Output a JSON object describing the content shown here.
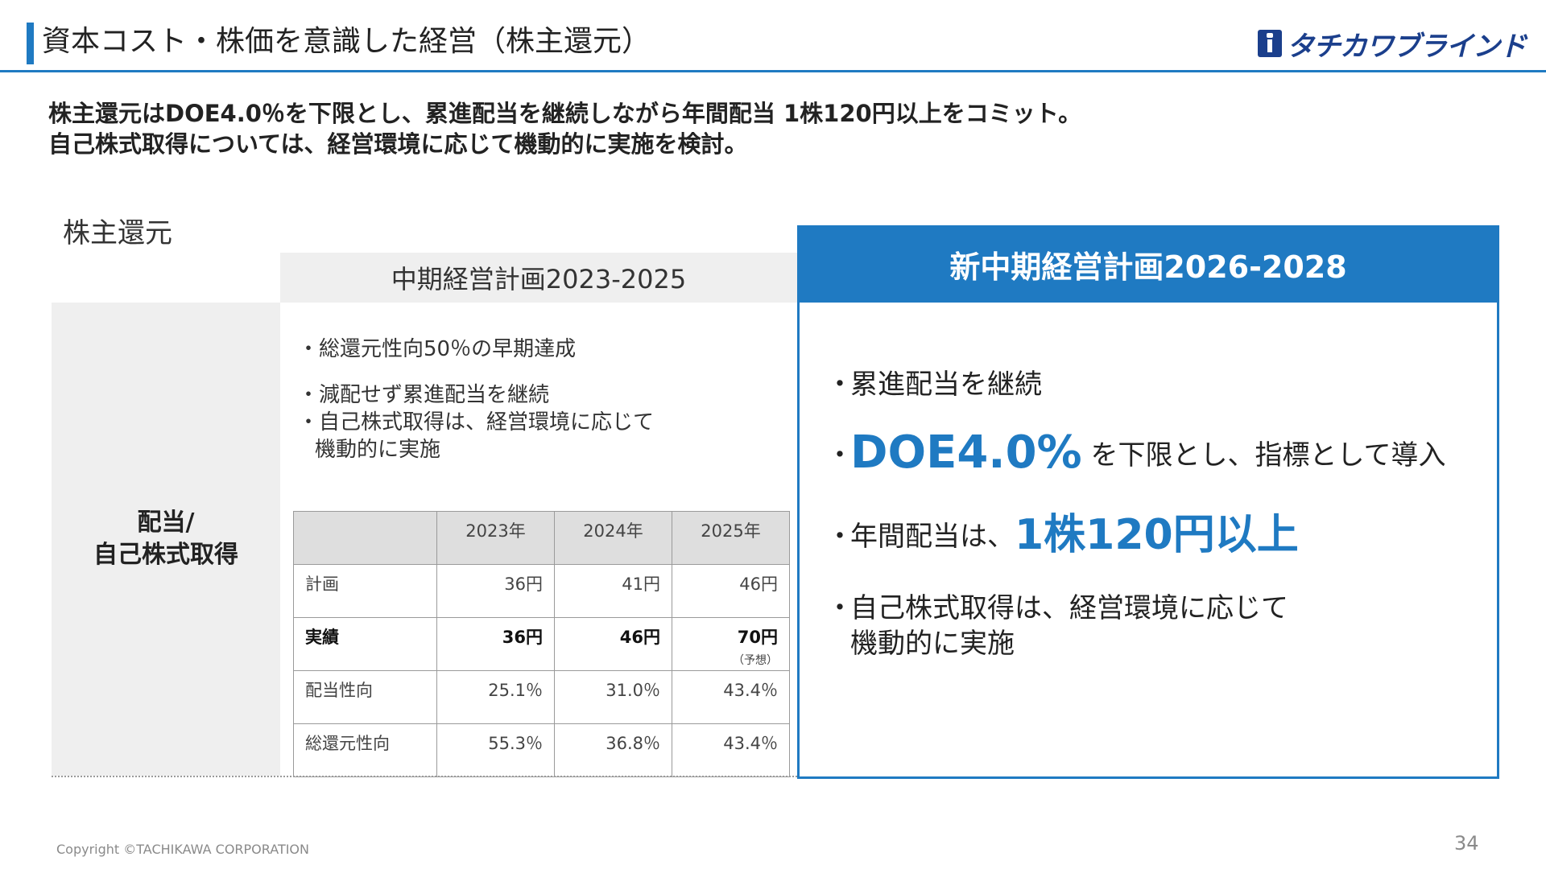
{
  "header": {
    "title": "資本コスト・株価を意識した経営（株主還元）",
    "logo_text": "タチカワブラインド",
    "logo_icon": "tachikawa-logo-icon"
  },
  "lead": {
    "line1": "株主還元はDOE4.0％を下限とし、累進配当を継続しながら年間配当 1株120円以上をコミット。",
    "line2": "自己株式取得については、経営環境に応じて機動的に実施を検討。"
  },
  "section_label": "株主還元",
  "row_label": [
    "配当/",
    "自己株式取得"
  ],
  "left": {
    "header": "中期経営計画2023-2025",
    "bullets": [
      "・総還元性向50％の早期達成",
      "・減配せず累進配当を継続",
      "・自己株式取得は、経営環境に応じて",
      "機動的に実施"
    ]
  },
  "table": {
    "columns": [
      "2023年",
      "2024年",
      "2025年"
    ],
    "rows": [
      {
        "label": "計画",
        "values": [
          "36円",
          "41円",
          "46円"
        ]
      },
      {
        "label": "実績",
        "values": [
          "36円",
          "46円",
          "70円"
        ],
        "note": "（予想）"
      },
      {
        "label": "配当性向",
        "values": [
          "25.1％",
          "31.0％",
          "43.4％"
        ]
      },
      {
        "label": "総還元性向",
        "values": [
          "55.3％",
          "36.8％",
          "43.4％"
        ]
      }
    ]
  },
  "right": {
    "header": "新中期経営計画2026-2028",
    "bullet_mark": "・",
    "b1": "累進配当を継続",
    "b2_em": "DOE4.0%",
    "b2_rest": " を下限とし、指標として導入",
    "b3_pre": "年間配当は、",
    "b3_em": "1株120円以上",
    "b4_line1": "自己株式取得は、経営環境に応じて",
    "b4_line2": "機動的に実施"
  },
  "colors": {
    "accent": "#1f7ac2",
    "logo": "#1b3f8c",
    "panel_gray": "#efefef"
  },
  "footer": {
    "copyright": "Copyright ©TACHIKAWA CORPORATION",
    "page": "34"
  }
}
